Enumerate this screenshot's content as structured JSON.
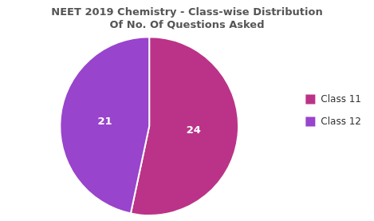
{
  "chart_data": {
    "type": "pie",
    "title": "NEET 2019 Chemistry - Class-wise Distribution\nOf No. Of Questions Asked",
    "categories": [
      "Class 11",
      "Class 12"
    ],
    "values": [
      24,
      21
    ],
    "colors": [
      "#bb3388",
      "#9944cc"
    ],
    "data_labels": true,
    "legend": "right"
  }
}
